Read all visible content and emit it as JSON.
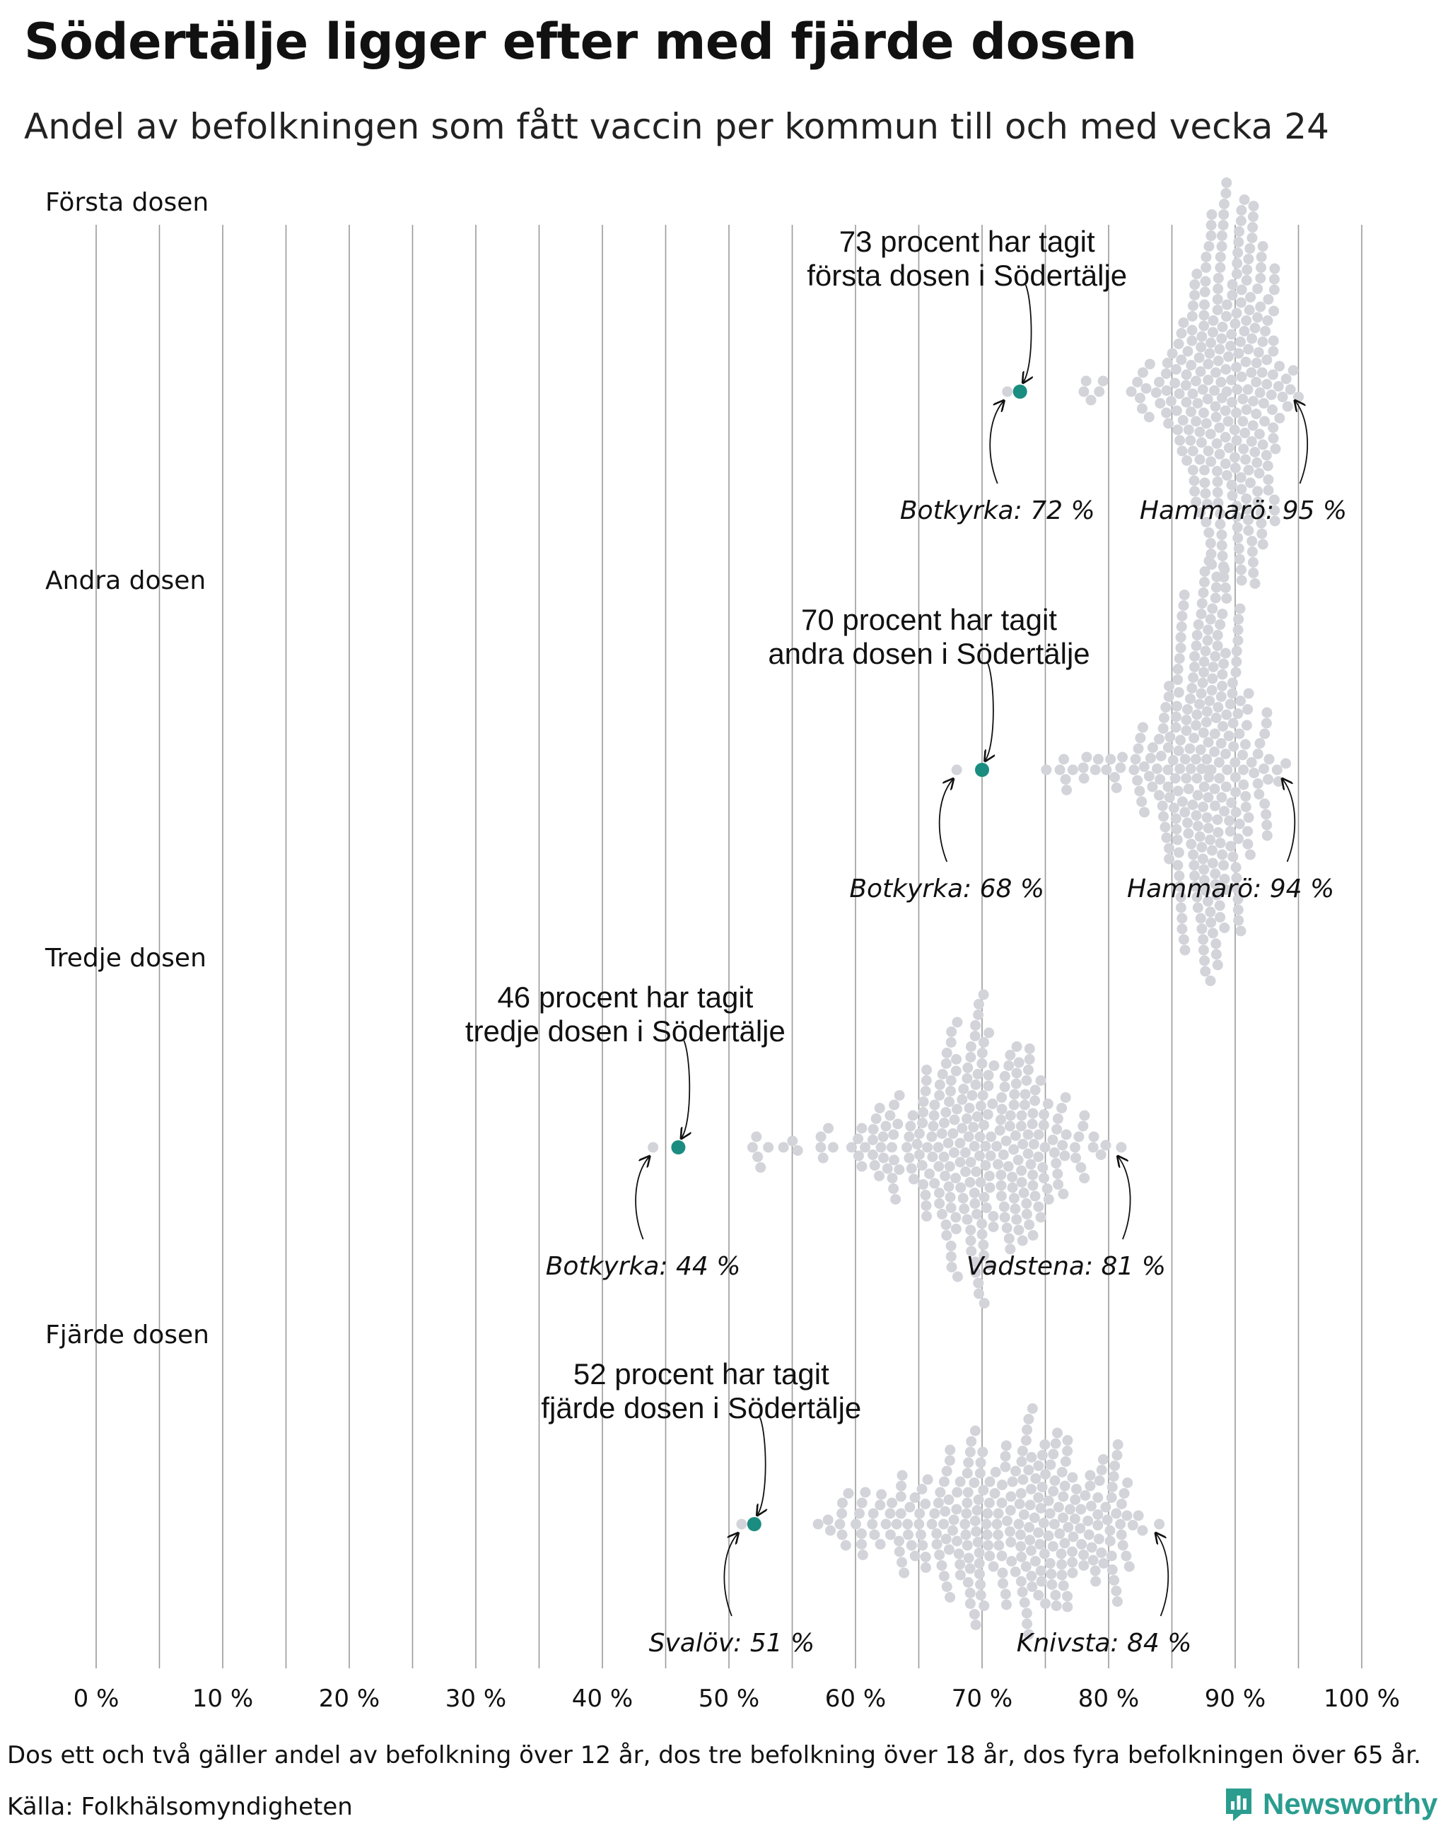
{
  "title": "Södertälje ligger efter med fjärde dosen",
  "subtitle": "Andel av befolkningen som fått vaccin per kommun till och med vecka 24",
  "footnote": "Dos ett och två gäller andel av befolkning över 12 år, dos tre befolkning över 18 år, dos fyra befolkningen över 65 år.",
  "source": "Källa: Folkhälsomyndigheten",
  "brand": "Newsworthy",
  "colors": {
    "highlight": "#1a8c80",
    "dots": "#d3d3da",
    "grid": "#9a9a9a",
    "text": "#111111"
  },
  "chart_data": {
    "type": "scatter",
    "subtype": "beeswarm",
    "x_unit": "%",
    "xlim": [
      0,
      100
    ],
    "x_ticks": [
      0,
      10,
      20,
      30,
      40,
      50,
      60,
      70,
      80,
      90,
      100
    ],
    "x_tick_labels": [
      "0 %",
      "10 %",
      "20 %",
      "30 %",
      "40 %",
      "50 %",
      "60 %",
      "70 %",
      "80 %",
      "90 %",
      "100 %"
    ],
    "panels": [
      {
        "label": "Första dosen",
        "highlight": {
          "name": "Södertälje",
          "value": 73,
          "label_lines": [
            "73 procent har tagit",
            "första dosen i Södertälje"
          ]
        },
        "min": {
          "name": "Botkyrka",
          "value": 72,
          "label": "Botkyrka: 72 %"
        },
        "max": {
          "name": "Hammarö",
          "value": 95,
          "label": "Hammarö: 95 %"
        },
        "distribution": {
          "mean": 89.5,
          "sd": 2.4,
          "count": 290
        }
      },
      {
        "label": "Andra dosen",
        "highlight": {
          "name": "Södertälje",
          "value": 70,
          "label_lines": [
            "70 procent har tagit",
            "andra dosen i Södertälje"
          ]
        },
        "min": {
          "name": "Botkyrka",
          "value": 68,
          "label": "Botkyrka: 68 %"
        },
        "max": {
          "name": "Hammarö",
          "value": 94,
          "label": "Hammarö: 94 %"
        },
        "distribution": {
          "mean": 88,
          "sd": 2.6,
          "count": 290
        }
      },
      {
        "label": "Tredje dosen",
        "highlight": {
          "name": "Södertälje",
          "value": 46,
          "label_lines": [
            "46 procent har tagit",
            "tredje dosen i Södertälje"
          ]
        },
        "min": {
          "name": "Botkyrka",
          "value": 44,
          "label": "Botkyrka: 44 %"
        },
        "max": {
          "name": "Vadstena",
          "value": 81,
          "label": "Vadstena: 81 %"
        },
        "distribution": {
          "mean": 69.5,
          "sd": 4.4,
          "count": 290
        }
      },
      {
        "label": "Fjärde dosen",
        "highlight": {
          "name": "Södertälje",
          "value": 52,
          "label_lines": [
            "52 procent har tagit",
            "fjärde dosen i Södertälje"
          ]
        },
        "min": {
          "name": "Svalöv",
          "value": 51,
          "label": "Svalöv: 51 %"
        },
        "max": {
          "name": "Knivsta",
          "value": 84,
          "label": "Knivsta: 84 %"
        },
        "distribution": {
          "mean": 73,
          "sd": 5.6,
          "count": 290
        }
      }
    ]
  }
}
